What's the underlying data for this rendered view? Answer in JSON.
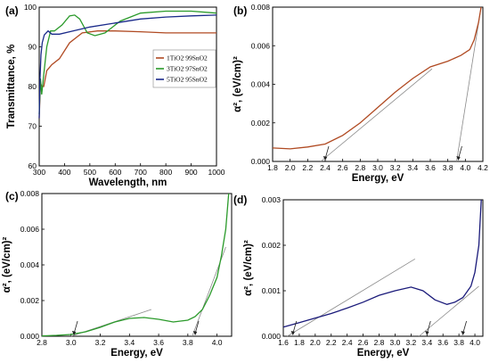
{
  "chart_data": [
    {
      "panel": "(a)",
      "type": "line",
      "xlabel": "Wavelength, nm",
      "ylabel": "Transmittance, %",
      "xlim": [
        300,
        1000
      ],
      "ylim": [
        60,
        100
      ],
      "xticks": [
        300,
        400,
        500,
        600,
        700,
        800,
        900,
        1000
      ],
      "yticks": [
        60,
        70,
        80,
        90,
        100
      ],
      "legend_position": "center-right",
      "series": [
        {
          "name": "1TiO2 99SnO2",
          "color": "#b04a22",
          "x": [
            300,
            305,
            310,
            318,
            330,
            350,
            380,
            420,
            470,
            530,
            600,
            700,
            800,
            900,
            1000
          ],
          "y": [
            72,
            81,
            80,
            80,
            84,
            85.5,
            87,
            91,
            93.5,
            94,
            94,
            93.8,
            93.5,
            93.5,
            93.5
          ]
        },
        {
          "name": "3TiO2 97SnO2",
          "color": "#2a9a2a",
          "x": [
            300,
            305,
            310,
            318,
            330,
            345,
            360,
            390,
            420,
            440,
            460,
            490,
            520,
            560,
            620,
            700,
            800,
            900,
            1000
          ],
          "y": [
            73,
            82,
            78,
            83,
            90,
            94,
            94,
            95.5,
            97.8,
            98,
            97,
            93.5,
            92.8,
            93.5,
            96.5,
            98.5,
            99,
            99,
            98.5
          ]
        },
        {
          "name": "5TiO2 95SnO2",
          "color": "#1a2a8a",
          "x": [
            300,
            303,
            307,
            312,
            320,
            335,
            350,
            380,
            420,
            500,
            600,
            700,
            800,
            900,
            1000
          ],
          "y": [
            72,
            82,
            88,
            91,
            93,
            94,
            93.2,
            93.2,
            93.8,
            95,
            96,
            97,
            97.5,
            97.8,
            98
          ]
        }
      ]
    },
    {
      "panel": "(b)",
      "type": "line",
      "xlabel": "Energy, eV",
      "ylabel": "α², (eV/cm)²",
      "xlim": [
        1.8,
        4.2
      ],
      "ylim": [
        0,
        0.008
      ],
      "xticks": [
        1.8,
        2.0,
        2.2,
        2.4,
        2.6,
        2.8,
        3.0,
        3.2,
        3.4,
        3.6,
        3.8,
        4.0,
        4.2
      ],
      "yticks": [
        0,
        0.002,
        0.004,
        0.006,
        0.008
      ],
      "series": [
        {
          "color": "#b04a22",
          "x": [
            1.8,
            2.0,
            2.2,
            2.4,
            2.6,
            2.8,
            3.0,
            3.2,
            3.4,
            3.6,
            3.8,
            3.95,
            4.05,
            4.1,
            4.15,
            4.18
          ],
          "y": [
            0.0007,
            0.00065,
            0.00075,
            0.0009,
            0.00135,
            0.002,
            0.0028,
            0.0036,
            0.0043,
            0.0049,
            0.0052,
            0.0055,
            0.0058,
            0.0063,
            0.0072,
            0.008
          ]
        }
      ],
      "fits": [
        {
          "x": [
            2.35,
            3.62
          ],
          "y": [
            0,
            0.0048
          ]
        },
        {
          "x": [
            3.9,
            4.18
          ],
          "y": [
            0,
            0.008
          ]
        }
      ],
      "arrows_at": [
        2.4,
        3.92
      ]
    },
    {
      "panel": "(c)",
      "type": "line",
      "xlabel": "Energy, eV",
      "ylabel": "α², (eV/cm)²",
      "xlim": [
        2.8,
        4.1
      ],
      "ylim": [
        0,
        0.008
      ],
      "xticks": [
        2.8,
        3.0,
        3.2,
        3.4,
        3.6,
        3.8,
        4.0
      ],
      "yticks": [
        0,
        0.002,
        0.004,
        0.006,
        0.008
      ],
      "series": [
        {
          "color": "#2a9a2a",
          "x": [
            2.8,
            2.9,
            3.0,
            3.1,
            3.2,
            3.3,
            3.4,
            3.5,
            3.6,
            3.7,
            3.8,
            3.85,
            3.9,
            3.95,
            4.0,
            4.03,
            4.06,
            4.08
          ],
          "y": [
            2e-05,
            5e-05,
            0.0001,
            0.00025,
            0.0005,
            0.0008,
            0.001,
            0.00105,
            0.00095,
            0.0008,
            0.0009,
            0.0011,
            0.0015,
            0.0023,
            0.0033,
            0.0045,
            0.006,
            0.008
          ]
        }
      ],
      "fits": [
        {
          "x": [
            3.0,
            3.55
          ],
          "y": [
            0,
            0.0015
          ]
        },
        {
          "x": [
            3.83,
            4.06
          ],
          "y": [
            0,
            0.005
          ]
        }
      ],
      "arrows_at": [
        3.02,
        3.85
      ]
    },
    {
      "panel": "(d)",
      "type": "line",
      "xlabel": "Energy, eV",
      "ylabel": "α², (eV/cm)²",
      "xlim": [
        1.6,
        4.1
      ],
      "ylim": [
        0,
        0.003
      ],
      "xticks": [
        1.6,
        1.8,
        2.0,
        2.2,
        2.4,
        2.6,
        2.8,
        3.0,
        3.2,
        3.4,
        3.6,
        3.8,
        4.0
      ],
      "yticks": [
        0,
        0.001,
        0.002,
        0.003
      ],
      "series": [
        {
          "color": "#1a1a7a",
          "x": [
            1.6,
            1.8,
            2.0,
            2.2,
            2.4,
            2.6,
            2.8,
            3.0,
            3.2,
            3.35,
            3.5,
            3.65,
            3.75,
            3.85,
            3.95,
            4.0,
            4.05,
            4.08
          ],
          "y": [
            0.0002,
            0.0003,
            0.0004,
            0.0005,
            0.00062,
            0.00075,
            0.0009,
            0.001,
            0.00108,
            0.001,
            0.0008,
            0.0007,
            0.00075,
            0.00085,
            0.0011,
            0.0014,
            0.002,
            0.003
          ]
        }
      ],
      "fits": [
        {
          "x": [
            1.65,
            3.25
          ],
          "y": [
            0,
            0.0017
          ]
        },
        {
          "x": [
            3.3,
            4.05
          ],
          "y": [
            0,
            0.0011
          ]
        }
      ],
      "arrows_at": [
        1.72,
        3.4,
        3.85
      ]
    }
  ]
}
